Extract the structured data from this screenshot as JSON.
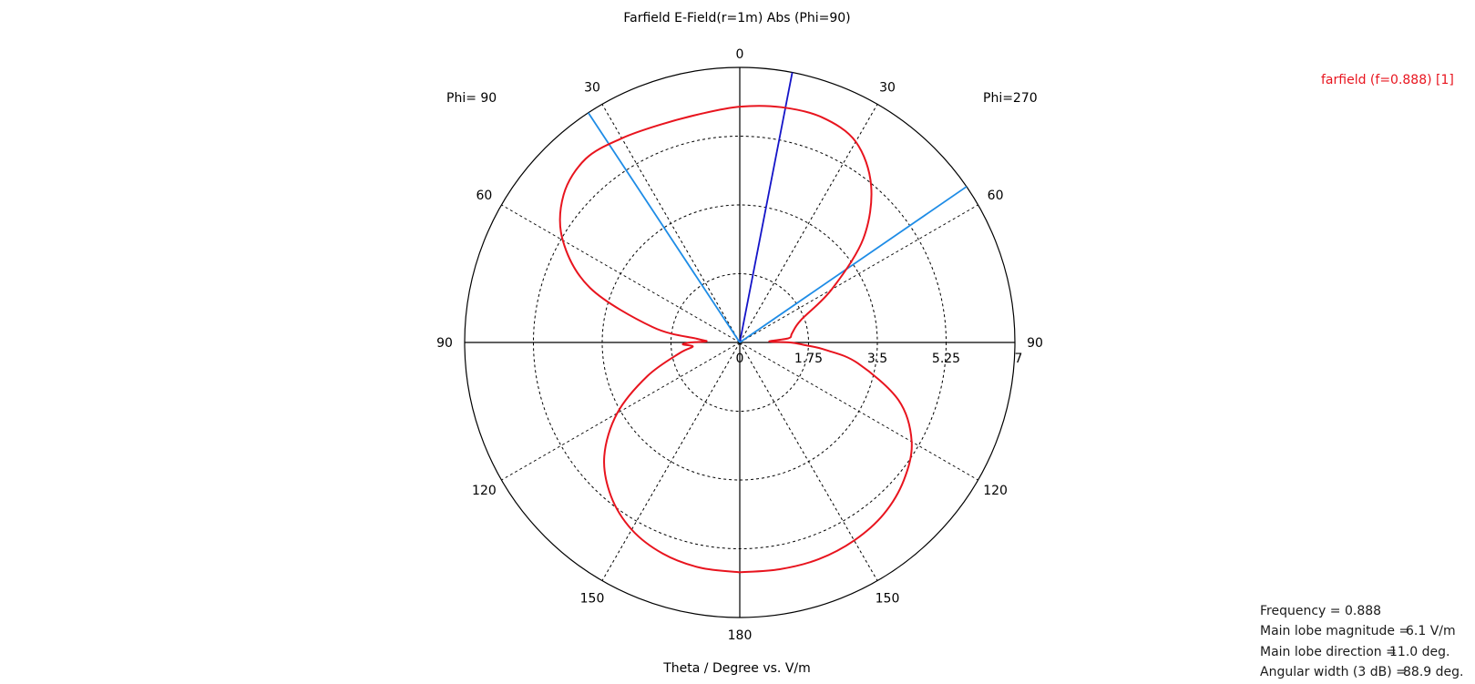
{
  "chart_data": {
    "type": "polar",
    "title": "Farfield E-Field(r=1m) Abs (Phi=90)",
    "xlabel": "Theta / Degree vs. V/m",
    "left_half_label": "Phi= 90",
    "right_half_label": "Phi=270",
    "radial_ticks": [
      "0",
      "1.75",
      "3.5",
      "5.25",
      "7"
    ],
    "radial_range": [
      0,
      7
    ],
    "angle_labels": {
      "top": "0",
      "bottom": "180",
      "left": [
        "30",
        "60",
        "90",
        "120",
        "150"
      ],
      "right": [
        "30",
        "60",
        "90",
        "120",
        "150"
      ]
    },
    "grid": "dashed concentric rings every 1.75 V/m, dashed spokes every 30 deg",
    "series": [
      {
        "name": "farfield (f=0.888) [1]",
        "color": "#e8141e",
        "theta_deg": [
          -180,
          -170,
          -160,
          -150,
          -140,
          -130,
          -120,
          -110,
          -100,
          -95,
          -92,
          -90,
          -88,
          -85,
          -80,
          -70,
          -60,
          -50,
          -40,
          -30,
          -20,
          -10,
          0,
          10,
          20,
          30,
          40,
          50,
          60,
          70,
          80,
          85,
          88,
          90,
          92,
          95,
          100,
          110,
          120,
          130,
          140,
          150,
          160,
          170,
          180
        ],
        "values": [
          5.85,
          5.82,
          5.72,
          5.5,
          5.1,
          4.5,
          3.6,
          2.5,
          1.55,
          1.2,
          1.45,
          1.25,
          0.85,
          1.1,
          2.25,
          4.05,
          5.2,
          5.85,
          6.1,
          6.0,
          5.9,
          5.9,
          6.0,
          6.08,
          6.1,
          5.9,
          5.2,
          4.1,
          2.7,
          1.65,
          1.35,
          1.25,
          0.75,
          1.28,
          1.6,
          2.2,
          3.05,
          4.3,
          5.05,
          5.45,
          5.7,
          5.82,
          5.87,
          5.86,
          5.85
        ]
      }
    ],
    "markers": [
      {
        "type": "main-lobe-direction",
        "theta_deg": 11.0,
        "color": "#1414c8"
      },
      {
        "type": "3dB-beam-edge",
        "theta_deg": 55.5,
        "color": "#1e8ce6"
      },
      {
        "type": "3dB-beam-edge",
        "theta_deg": -33.4,
        "color": "#1e8ce6"
      }
    ],
    "legend": {
      "position": "top-right",
      "entries": [
        "farfield (f=0.888) [1]"
      ]
    },
    "info_box": [
      {
        "label": "Frequency = 0.888",
        "value": ""
      },
      {
        "label": "Main lobe magnitude =",
        "value": "6.1 V/m"
      },
      {
        "label": "Main lobe direction =",
        "value": "11.0 deg."
      },
      {
        "label": "Angular width (3 dB) =",
        "value": "88.9 deg."
      }
    ]
  }
}
